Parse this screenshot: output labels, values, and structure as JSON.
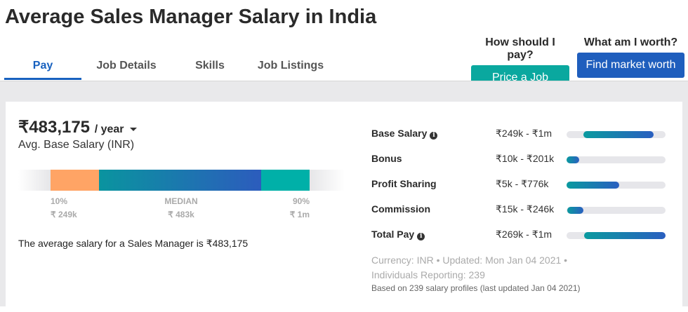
{
  "header": {
    "title": "Average Sales Manager Salary in India"
  },
  "tabs": [
    {
      "label": "Pay",
      "active": true
    },
    {
      "label": "Job Details"
    },
    {
      "label": "Skills"
    },
    {
      "label": "Job Listings"
    }
  ],
  "cta": {
    "pay_question": "How should I pay?",
    "pay_button": "Price a Job",
    "worth_question": "What am I worth?",
    "worth_button": "Find market worth",
    "pay_color": "#0aa89f",
    "worth_color": "#1f5ebd"
  },
  "summary": {
    "amount": "₹483,175",
    "period": "/ year",
    "subtitle": "Avg. Base Salary (INR)",
    "p10_label": "10%",
    "p10_value": "₹ 249k",
    "median_label": "MEDIAN",
    "median_value": "₹ 483k",
    "p90_label": "90%",
    "p90_value": "₹ 1m",
    "avg_text": "The average salary for a Sales Manager is ₹483,175"
  },
  "breakdown": [
    {
      "name": "Base Salary",
      "range": "₹249k - ₹1m",
      "info": true,
      "start": 0.17,
      "end": 0.88
    },
    {
      "name": "Bonus",
      "range": "₹10k - ₹201k",
      "start": 0,
      "end": 0.13
    },
    {
      "name": "Profit Sharing",
      "range": "₹5k - ₹776k",
      "start": 0,
      "end": 0.53
    },
    {
      "name": "Commission",
      "range": "₹15k - ₹246k",
      "start": 0.01,
      "end": 0.17
    },
    {
      "name": "Total Pay",
      "range": "₹269k - ₹1m",
      "info": true,
      "start": 0.18,
      "end": 1.0
    }
  ],
  "meta": {
    "line1": "Currency: INR • Updated: Mon Jan 04 2021 •",
    "line2": "Individuals Reporting: 239",
    "line3": "Based on 239 salary profiles (last updated Jan 04 2021)"
  }
}
